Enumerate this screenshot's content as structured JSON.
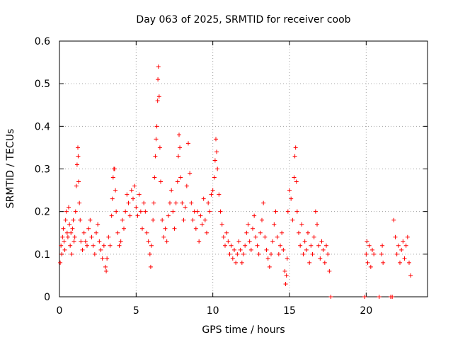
{
  "chart_data": {
    "type": "scatter",
    "title": "Day 063 of 2025, SRMTID for receiver coob",
    "xlabel": "GPS time / hours",
    "ylabel": "SRMTID / TECUs",
    "xlim": [
      0,
      24
    ],
    "ylim": [
      0,
      0.6
    ],
    "x_ticks": [
      0,
      5,
      10,
      15,
      20
    ],
    "x_tick_labels": [
      "0",
      "5",
      "10",
      "15",
      "20"
    ],
    "y_ticks": [
      0,
      0.1,
      0.2,
      0.3,
      0.4,
      0.5,
      0.6
    ],
    "y_tick_labels": [
      "0",
      "0.1",
      "0.2",
      "0.3",
      "0.4",
      "0.5",
      "0.6"
    ],
    "grid": true,
    "marker": "plus",
    "marker_color": "#ff0000",
    "series": [
      {
        "name": "SRMTID",
        "points": [
          [
            0.05,
            0.08
          ],
          [
            0.1,
            0.12
          ],
          [
            0.15,
            0.1
          ],
          [
            0.2,
            0.14
          ],
          [
            0.25,
            0.16
          ],
          [
            0.3,
            0.13
          ],
          [
            0.35,
            0.11
          ],
          [
            0.4,
            0.18
          ],
          [
            0.45,
            0.2
          ],
          [
            0.5,
            0.15
          ],
          [
            0.55,
            0.14
          ],
          [
            0.6,
            0.21
          ],
          [
            0.65,
            0.17
          ],
          [
            0.7,
            0.12
          ],
          [
            0.75,
            0.15
          ],
          [
            0.8,
            0.1
          ],
          [
            0.85,
            0.16
          ],
          [
            0.9,
            0.18
          ],
          [
            0.95,
            0.13
          ],
          [
            1.0,
            0.14
          ],
          [
            1.05,
            0.2
          ],
          [
            1.1,
            0.26
          ],
          [
            1.15,
            0.31
          ],
          [
            1.2,
            0.35
          ],
          [
            1.22,
            0.33
          ],
          [
            1.25,
            0.27
          ],
          [
            1.3,
            0.22
          ],
          [
            1.35,
            0.18
          ],
          [
            1.4,
            0.13
          ],
          [
            1.5,
            0.11
          ],
          [
            1.6,
            0.15
          ],
          [
            1.7,
            0.13
          ],
          [
            1.8,
            0.12
          ],
          [
            1.9,
            0.16
          ],
          [
            2.0,
            0.18
          ],
          [
            2.1,
            0.14
          ],
          [
            2.2,
            0.12
          ],
          [
            2.3,
            0.1
          ],
          [
            2.4,
            0.15
          ],
          [
            2.5,
            0.17
          ],
          [
            2.6,
            0.13
          ],
          [
            2.7,
            0.11
          ],
          [
            2.8,
            0.09
          ],
          [
            2.9,
            0.12
          ],
          [
            3.0,
            0.07
          ],
          [
            3.05,
            0.06
          ],
          [
            3.1,
            0.09
          ],
          [
            3.2,
            0.14
          ],
          [
            3.3,
            0.12
          ],
          [
            3.4,
            0.19
          ],
          [
            3.45,
            0.23
          ],
          [
            3.5,
            0.28
          ],
          [
            3.55,
            0.3
          ],
          [
            3.6,
            0.3
          ],
          [
            3.65,
            0.25
          ],
          [
            3.7,
            0.2
          ],
          [
            3.8,
            0.15
          ],
          [
            3.9,
            0.12
          ],
          [
            4.0,
            0.13
          ],
          [
            4.1,
            0.18
          ],
          [
            4.2,
            0.16
          ],
          [
            4.3,
            0.2
          ],
          [
            4.4,
            0.24
          ],
          [
            4.5,
            0.22
          ],
          [
            4.6,
            0.19
          ],
          [
            4.7,
            0.25
          ],
          [
            4.8,
            0.23
          ],
          [
            4.9,
            0.26
          ],
          [
            5.0,
            0.21
          ],
          [
            5.1,
            0.19
          ],
          [
            5.2,
            0.24
          ],
          [
            5.3,
            0.2
          ],
          [
            5.4,
            0.16
          ],
          [
            5.5,
            0.22
          ],
          [
            5.6,
            0.2
          ],
          [
            5.7,
            0.15
          ],
          [
            5.8,
            0.13
          ],
          [
            5.9,
            0.1
          ],
          [
            5.95,
            0.07
          ],
          [
            6.0,
            0.12
          ],
          [
            6.1,
            0.18
          ],
          [
            6.15,
            0.22
          ],
          [
            6.2,
            0.28
          ],
          [
            6.25,
            0.33
          ],
          [
            6.3,
            0.37
          ],
          [
            6.35,
            0.4
          ],
          [
            6.4,
            0.46
          ],
          [
            6.42,
            0.51
          ],
          [
            6.45,
            0.54
          ],
          [
            6.5,
            0.47
          ],
          [
            6.55,
            0.35
          ],
          [
            6.6,
            0.27
          ],
          [
            6.7,
            0.18
          ],
          [
            6.8,
            0.14
          ],
          [
            6.9,
            0.16
          ],
          [
            7.0,
            0.13
          ],
          [
            7.1,
            0.19
          ],
          [
            7.2,
            0.22
          ],
          [
            7.3,
            0.25
          ],
          [
            7.4,
            0.2
          ],
          [
            7.5,
            0.16
          ],
          [
            7.6,
            0.22
          ],
          [
            7.7,
            0.27
          ],
          [
            7.75,
            0.33
          ],
          [
            7.8,
            0.38
          ],
          [
            7.85,
            0.35
          ],
          [
            7.9,
            0.28
          ],
          [
            8.0,
            0.22
          ],
          [
            8.1,
            0.18
          ],
          [
            8.2,
            0.21
          ],
          [
            8.3,
            0.26
          ],
          [
            8.4,
            0.36
          ],
          [
            8.5,
            0.29
          ],
          [
            8.6,
            0.22
          ],
          [
            8.7,
            0.18
          ],
          [
            8.8,
            0.2
          ],
          [
            8.9,
            0.16
          ],
          [
            9.0,
            0.2
          ],
          [
            9.1,
            0.13
          ],
          [
            9.2,
            0.19
          ],
          [
            9.3,
            0.17
          ],
          [
            9.4,
            0.23
          ],
          [
            9.5,
            0.18
          ],
          [
            9.6,
            0.15
          ],
          [
            9.7,
            0.22
          ],
          [
            9.8,
            0.2
          ],
          [
            9.9,
            0.24
          ],
          [
            10.0,
            0.25
          ],
          [
            10.1,
            0.28
          ],
          [
            10.15,
            0.32
          ],
          [
            10.2,
            0.37
          ],
          [
            10.25,
            0.34
          ],
          [
            10.3,
            0.3
          ],
          [
            10.4,
            0.24
          ],
          [
            10.5,
            0.2
          ],
          [
            10.6,
            0.17
          ],
          [
            10.7,
            0.14
          ],
          [
            10.8,
            0.12
          ],
          [
            10.9,
            0.15
          ],
          [
            11.0,
            0.13
          ],
          [
            11.1,
            0.1
          ],
          [
            11.2,
            0.12
          ],
          [
            11.3,
            0.09
          ],
          [
            11.4,
            0.11
          ],
          [
            11.5,
            0.08
          ],
          [
            11.6,
            0.1
          ],
          [
            11.7,
            0.13
          ],
          [
            11.8,
            0.11
          ],
          [
            11.9,
            0.08
          ],
          [
            12.0,
            0.1
          ],
          [
            12.1,
            0.12
          ],
          [
            12.2,
            0.15
          ],
          [
            12.3,
            0.17
          ],
          [
            12.4,
            0.13
          ],
          [
            12.5,
            0.11
          ],
          [
            12.6,
            0.16
          ],
          [
            12.7,
            0.19
          ],
          [
            12.8,
            0.14
          ],
          [
            12.9,
            0.12
          ],
          [
            13.0,
            0.1
          ],
          [
            13.1,
            0.15
          ],
          [
            13.2,
            0.18
          ],
          [
            13.3,
            0.22
          ],
          [
            13.4,
            0.14
          ],
          [
            13.5,
            0.11
          ],
          [
            13.6,
            0.09
          ],
          [
            13.7,
            0.07
          ],
          [
            13.8,
            0.1
          ],
          [
            13.9,
            0.13
          ],
          [
            14.0,
            0.17
          ],
          [
            14.1,
            0.2
          ],
          [
            14.2,
            0.14
          ],
          [
            14.3,
            0.1
          ],
          [
            14.4,
            0.12
          ],
          [
            14.5,
            0.15
          ],
          [
            14.6,
            0.11
          ],
          [
            14.7,
            0.06
          ],
          [
            14.75,
            0.03
          ],
          [
            14.8,
            0.05
          ],
          [
            14.85,
            0.09
          ],
          [
            14.9,
            0.2
          ],
          [
            15.0,
            0.25
          ],
          [
            15.1,
            0.23
          ],
          [
            15.2,
            0.18
          ],
          [
            15.3,
            0.28
          ],
          [
            15.35,
            0.33
          ],
          [
            15.4,
            0.35
          ],
          [
            15.45,
            0.27
          ],
          [
            15.5,
            0.2
          ],
          [
            15.6,
            0.15
          ],
          [
            15.7,
            0.12
          ],
          [
            15.8,
            0.17
          ],
          [
            15.9,
            0.1
          ],
          [
            16.0,
            0.13
          ],
          [
            16.1,
            0.11
          ],
          [
            16.2,
            0.15
          ],
          [
            16.3,
            0.08
          ],
          [
            16.4,
            0.12
          ],
          [
            16.5,
            0.1
          ],
          [
            16.6,
            0.14
          ],
          [
            16.7,
            0.2
          ],
          [
            16.8,
            0.17
          ],
          [
            16.9,
            0.12
          ],
          [
            17.0,
            0.09
          ],
          [
            17.1,
            0.13
          ],
          [
            17.2,
            0.11
          ],
          [
            17.3,
            0.08
          ],
          [
            17.4,
            0.12
          ],
          [
            17.5,
            0.1
          ],
          [
            17.6,
            0.06
          ],
          [
            17.7,
            0.0
          ],
          [
            19.9,
            0.0
          ],
          [
            20.0,
            0.1
          ],
          [
            20.05,
            0.13
          ],
          [
            20.1,
            0.08
          ],
          [
            20.2,
            0.12
          ],
          [
            20.3,
            0.07
          ],
          [
            20.4,
            0.11
          ],
          [
            20.5,
            0.1
          ],
          [
            20.85,
            0.0
          ],
          [
            21.0,
            0.1
          ],
          [
            21.05,
            0.12
          ],
          [
            21.1,
            0.08
          ],
          [
            21.6,
            0.0
          ],
          [
            21.7,
            0.0
          ],
          [
            21.8,
            0.18
          ],
          [
            21.9,
            0.14
          ],
          [
            22.0,
            0.1
          ],
          [
            22.1,
            0.12
          ],
          [
            22.2,
            0.08
          ],
          [
            22.3,
            0.11
          ],
          [
            22.4,
            0.13
          ],
          [
            22.5,
            0.09
          ],
          [
            22.6,
            0.12
          ],
          [
            22.7,
            0.14
          ],
          [
            22.8,
            0.08
          ],
          [
            22.9,
            0.05
          ]
        ]
      }
    ]
  }
}
